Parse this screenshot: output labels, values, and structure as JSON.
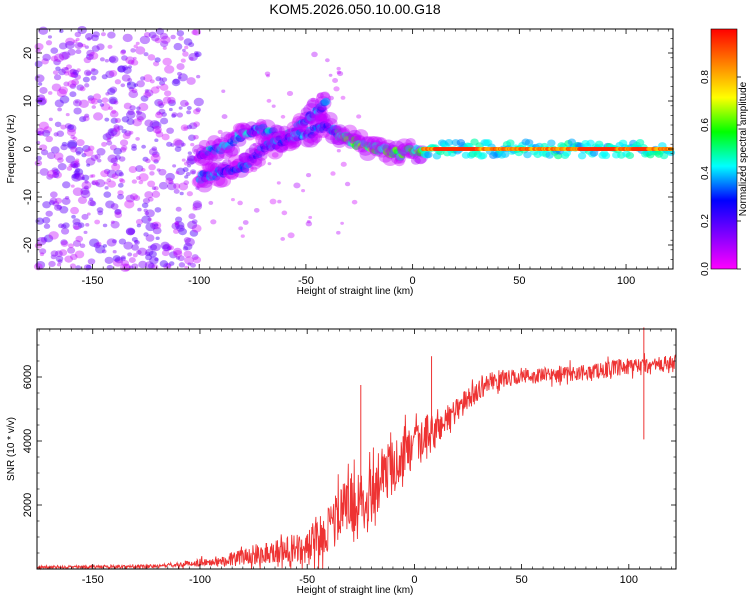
{
  "title": "KOM5.2026.050.10.00.G18",
  "chart_data": [
    {
      "type": "heatmap",
      "panel": "spectrogram",
      "title": "KOM5.2026.050.10.00.G18",
      "xlabel": "Height of straight line (km)",
      "ylabel": "Frequency (Hz)",
      "xlim": [
        -176,
        122
      ],
      "ylim": [
        -25,
        25
      ],
      "xticks": [
        -150,
        -100,
        -50,
        0,
        50,
        100
      ],
      "yticks": [
        -20,
        -10,
        0,
        10,
        20
      ],
      "colorbar": {
        "label": "Normalized spectral amplitude",
        "range": [
          0.0,
          1.0
        ],
        "ticks": [
          0.0,
          0.2,
          0.4,
          0.6,
          0.8
        ],
        "tick_labels": [
          "0.0",
          "0.2",
          "0.4",
          "0.6",
          "0.8"
        ],
        "colors": [
          "#ff00ff",
          "#8000ff",
          "#0000ff",
          "#00ffff",
          "#00ff00",
          "#ffff00",
          "#ff8000",
          "#ff0000"
        ]
      },
      "regions": [
        {
          "name": "noise",
          "x_range": [
            -176,
            -100
          ],
          "f_range": [
            -25,
            25
          ],
          "amplitude": 0.1
        },
        {
          "name": "rising-branch-upper",
          "points": [
            [
              -100,
              -1
            ],
            [
              -90,
              0
            ],
            [
              -80,
              3
            ],
            [
              -70,
              4
            ],
            [
              -60,
              2
            ],
            [
              -50,
              6
            ],
            [
              -45,
              8
            ],
            [
              -40,
              10
            ]
          ],
          "amplitude": 0.35
        },
        {
          "name": "rising-branch-lower",
          "points": [
            [
              -100,
              -6
            ],
            [
              -90,
              -5
            ],
            [
              -80,
              -4
            ],
            [
              -70,
              0
            ],
            [
              -60,
              2
            ],
            [
              -50,
              3
            ],
            [
              -40,
              5
            ],
            [
              -35,
              3
            ]
          ],
          "amplitude": 0.3
        },
        {
          "name": "converging",
          "points": [
            [
              -35,
              3
            ],
            [
              -25,
              1
            ],
            [
              -15,
              0
            ],
            [
              -5,
              -1
            ],
            [
              0,
              0
            ],
            [
              5,
              -1
            ]
          ],
          "amplitude": 0.55
        },
        {
          "name": "stable-line",
          "x_range": [
            5,
            122
          ],
          "frequency": 0,
          "amplitude": 0.85
        }
      ]
    },
    {
      "type": "line",
      "panel": "snr",
      "xlabel": "Height of straight line (km)",
      "ylabel": "SNR (10 * v/v)",
      "xlim": [
        -176,
        122
      ],
      "ylim": [
        0,
        7500
      ],
      "xticks": [
        -150,
        -100,
        -50,
        0,
        50,
        100
      ],
      "yticks": [
        2000,
        4000,
        6000
      ],
      "color": "#ee3333",
      "series": [
        {
          "name": "SNR",
          "x": [
            -176,
            -160,
            -140,
            -120,
            -110,
            -100,
            -90,
            -80,
            -70,
            -60,
            -55,
            -50,
            -45,
            -40,
            -35,
            -30,
            -25,
            -20,
            -15,
            -10,
            -5,
            0,
            5,
            10,
            15,
            20,
            25,
            30,
            35,
            40,
            50,
            60,
            70,
            80,
            90,
            100,
            110,
            122
          ],
          "y": [
            50,
            60,
            70,
            90,
            130,
            200,
            260,
            380,
            500,
            600,
            550,
            650,
            900,
            1300,
            1700,
            2100,
            2000,
            2500,
            2900,
            3200,
            3600,
            3700,
            4100,
            4300,
            4700,
            5000,
            5300,
            5600,
            5850,
            5950,
            6000,
            6050,
            6100,
            6150,
            6250,
            6300,
            6350,
            6400
          ],
          "spread": [
            40,
            50,
            60,
            70,
            90,
            150,
            200,
            320,
            450,
            500,
            650,
            700,
            800,
            900,
            1100,
            1100,
            1200,
            1300,
            1000,
            1100,
            1000,
            900,
            900,
            700,
            600,
            500,
            450,
            400,
            350,
            350,
            300,
            300,
            300,
            300,
            320,
            350,
            350,
            350
          ]
        }
      ],
      "spikes": [
        {
          "x": -25,
          "y": 5750
        },
        {
          "x": 8,
          "y": 6650
        },
        {
          "x": 107,
          "y": 7550
        },
        {
          "x": 107,
          "y": 4050
        }
      ]
    }
  ]
}
